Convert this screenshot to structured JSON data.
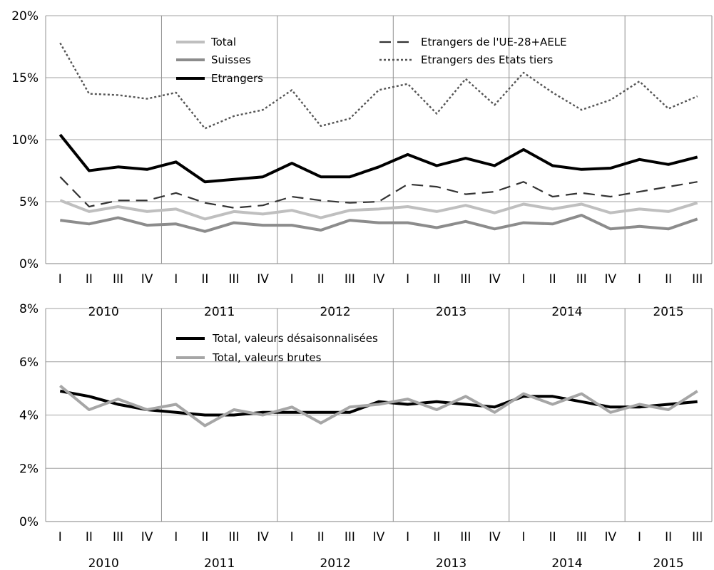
{
  "chart_data": [
    {
      "type": "line",
      "title": "",
      "xlabel": "",
      "ylabel": "",
      "ylim": [
        0,
        20
      ],
      "y_ticks": [
        "0%",
        "5%",
        "10%",
        "15%",
        "20%"
      ],
      "y_tick_values": [
        0,
        5,
        10,
        15,
        20
      ],
      "quarters": [
        "I",
        "II",
        "III",
        "IV",
        "I",
        "II",
        "III",
        "IV",
        "I",
        "II",
        "III",
        "IV",
        "I",
        "II",
        "III",
        "IV",
        "I",
        "II",
        "III",
        "IV",
        "I",
        "II",
        "III"
      ],
      "years": [
        "2010",
        "2011",
        "2012",
        "2013",
        "2014",
        "2015"
      ],
      "grid": "vertical at year boundaries, horizontal at y ticks",
      "legend_placement": "top",
      "series": [
        {
          "name": "Total",
          "color": "#bfbfbf",
          "style": "solid-thick",
          "values": [
            5.1,
            4.2,
            4.6,
            4.2,
            4.4,
            3.6,
            4.2,
            4.0,
            4.3,
            3.7,
            4.3,
            4.4,
            4.6,
            4.2,
            4.7,
            4.1,
            4.8,
            4.4,
            4.8,
            4.1,
            4.4,
            4.2,
            4.9
          ]
        },
        {
          "name": "Suisses",
          "color": "#8c8c8c",
          "style": "solid-thick",
          "values": [
            3.5,
            3.2,
            3.7,
            3.1,
            3.2,
            2.6,
            3.3,
            3.1,
            3.1,
            2.7,
            3.5,
            3.3,
            3.3,
            2.9,
            3.4,
            2.8,
            3.3,
            3.2,
            3.9,
            2.8,
            3.0,
            2.8,
            3.6
          ]
        },
        {
          "name": "Etrangers",
          "color": "#000000",
          "style": "solid-thick",
          "values": [
            10.4,
            7.5,
            7.8,
            7.6,
            8.2,
            6.6,
            6.8,
            7.0,
            8.1,
            7.0,
            7.0,
            7.8,
            8.8,
            7.9,
            8.5,
            7.9,
            9.2,
            7.9,
            7.6,
            7.7,
            8.4,
            8.0,
            8.6
          ]
        },
        {
          "name": "Etrangers de l'UE-28+AELE",
          "color": "#333333",
          "style": "dashed",
          "values": [
            7.0,
            4.6,
            5.1,
            5.1,
            5.7,
            4.9,
            4.5,
            4.7,
            5.4,
            5.1,
            4.9,
            5.0,
            6.4,
            6.2,
            5.6,
            5.8,
            6.6,
            5.4,
            5.7,
            5.4,
            5.8,
            6.2,
            6.6
          ]
        },
        {
          "name": "Etrangers des Etats tiers",
          "color": "#555555",
          "style": "dotted",
          "values": [
            17.8,
            13.7,
            13.6,
            13.3,
            13.8,
            10.9,
            11.9,
            12.4,
            14.0,
            11.1,
            11.7,
            14.0,
            14.5,
            12.1,
            14.9,
            12.8,
            15.4,
            13.8,
            12.4,
            13.2,
            14.7,
            12.5,
            13.5
          ]
        }
      ]
    },
    {
      "type": "line",
      "title": "",
      "xlabel": "",
      "ylabel": "",
      "ylim": [
        0,
        8
      ],
      "y_ticks": [
        "0%",
        "2%",
        "4%",
        "6%",
        "8%"
      ],
      "y_tick_values": [
        0,
        2,
        4,
        6,
        8
      ],
      "quarters": [
        "I",
        "II",
        "III",
        "IV",
        "I",
        "II",
        "III",
        "IV",
        "I",
        "II",
        "III",
        "IV",
        "I",
        "II",
        "III",
        "IV",
        "I",
        "II",
        "III",
        "IV",
        "I",
        "II",
        "III"
      ],
      "years": [
        "2010",
        "2011",
        "2012",
        "2013",
        "2014",
        "2015"
      ],
      "grid": "vertical at year boundaries, horizontal at y ticks",
      "legend_placement": "top-left",
      "series": [
        {
          "name": "Total, valeurs désaisonnalisées",
          "color": "#000000",
          "style": "solid-thick",
          "values": [
            4.9,
            4.7,
            4.4,
            4.2,
            4.1,
            4.0,
            4.0,
            4.1,
            4.1,
            4.1,
            4.1,
            4.5,
            4.4,
            4.5,
            4.4,
            4.3,
            4.7,
            4.7,
            4.5,
            4.3,
            4.3,
            4.4,
            4.5
          ]
        },
        {
          "name": "Total, valeurs brutes",
          "color": "#a6a6a6",
          "style": "solid-thick",
          "values": [
            5.1,
            4.2,
            4.6,
            4.2,
            4.4,
            3.6,
            4.2,
            4.0,
            4.3,
            3.7,
            4.3,
            4.4,
            4.6,
            4.2,
            4.7,
            4.1,
            4.8,
            4.4,
            4.8,
            4.1,
            4.4,
            4.2,
            4.9
          ]
        }
      ]
    }
  ]
}
